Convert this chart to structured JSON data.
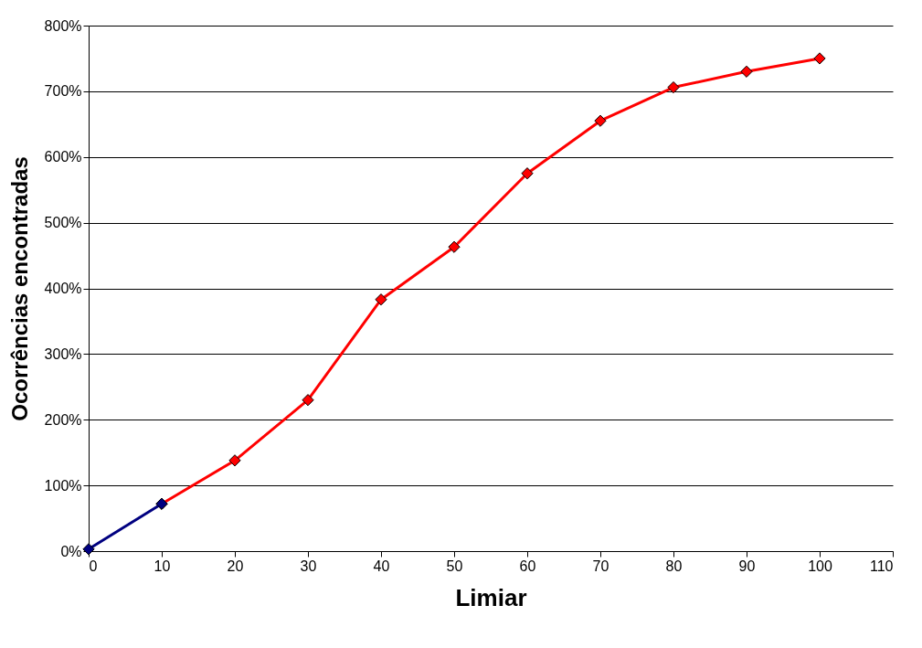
{
  "chart_data": {
    "type": "line",
    "xlabel": "Limiar",
    "ylabel": "Ocorrências encontradas",
    "series": [
      {
        "color": "#ff0000",
        "x": [
          10,
          20,
          30,
          40,
          50,
          60,
          70,
          80,
          90,
          100
        ],
        "values": [
          72,
          138,
          230,
          383,
          463,
          575,
          655,
          706,
          730,
          750
        ]
      },
      {
        "color": "#000080",
        "x": [
          0,
          10
        ],
        "values": [
          3,
          72
        ]
      }
    ],
    "xlim": [
      0,
      110
    ],
    "xticks": [
      0,
      10,
      20,
      30,
      40,
      50,
      60,
      70,
      80,
      90,
      100,
      110
    ],
    "ylim": [
      0,
      800
    ],
    "yticks": [
      {
        "value": 0,
        "label": "0%"
      },
      {
        "value": 100,
        "label": "100%"
      },
      {
        "value": 200,
        "label": "200%"
      },
      {
        "value": 300,
        "label": "300%"
      },
      {
        "value": 400,
        "label": "400%"
      },
      {
        "value": 500,
        "label": "500%"
      },
      {
        "value": 600,
        "label": "600%"
      },
      {
        "value": 700,
        "label": "700%"
      },
      {
        "value": 800,
        "label": "800%"
      }
    ],
    "grid": "y",
    "marker": "diamond",
    "line_style": "solid"
  }
}
